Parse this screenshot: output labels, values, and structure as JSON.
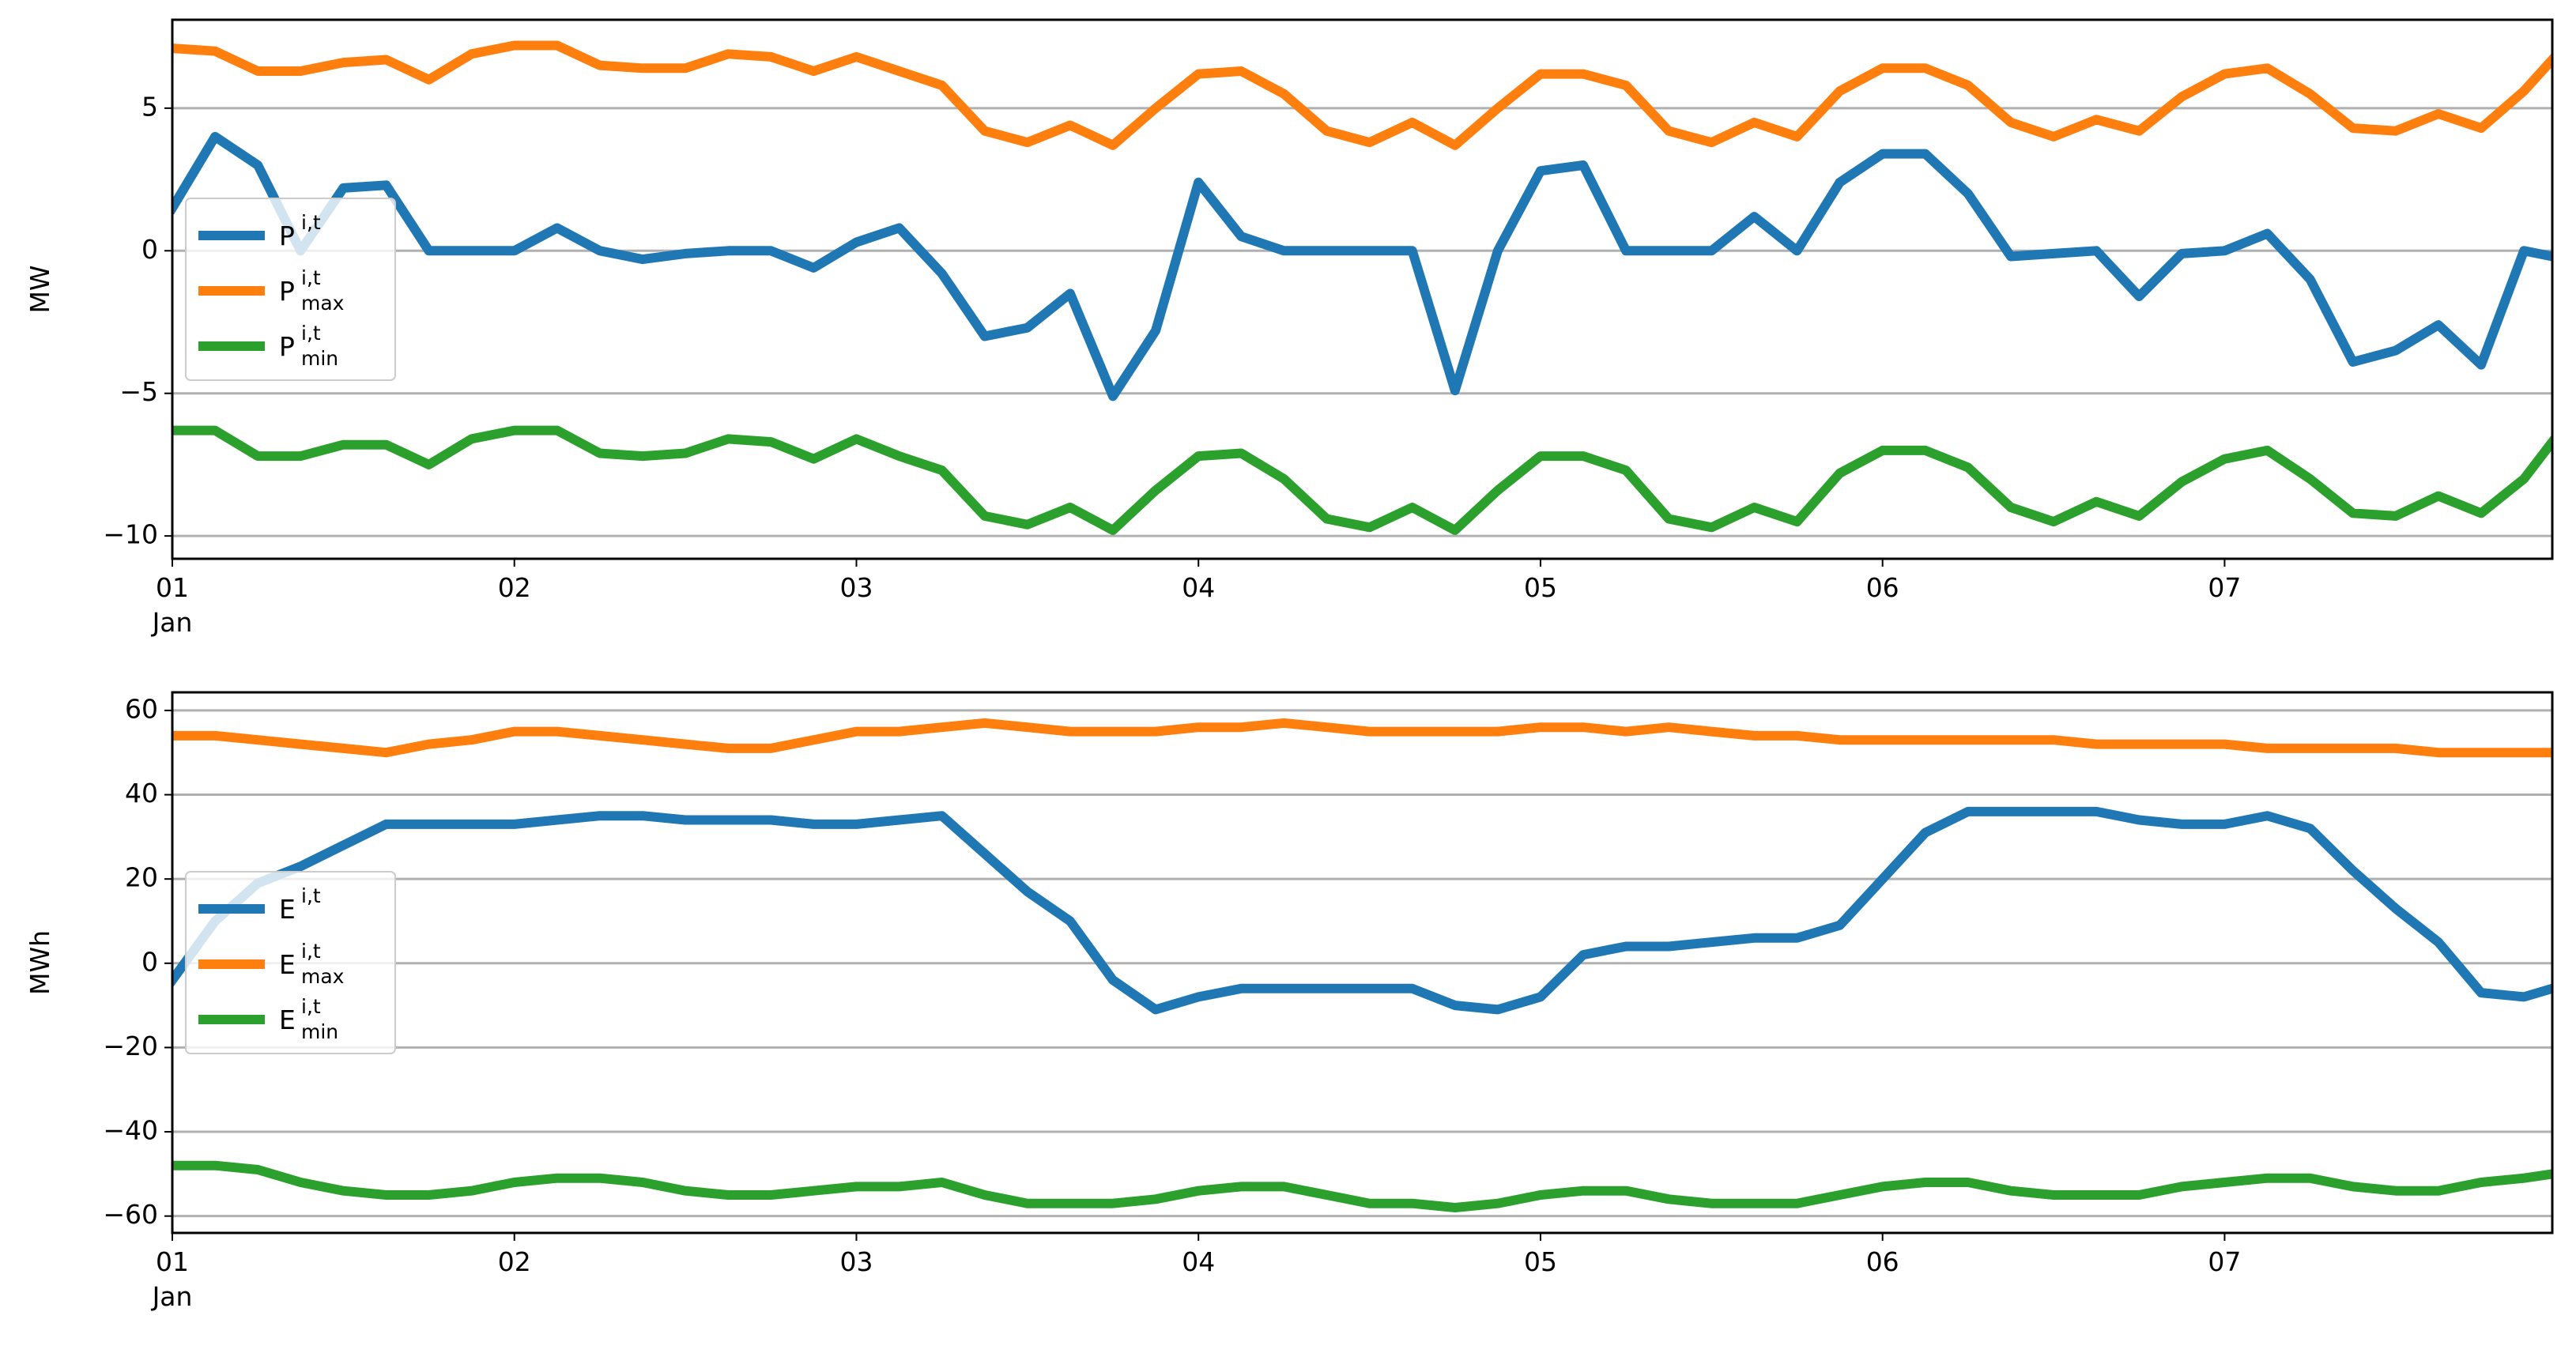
{
  "chart_data": [
    {
      "type": "line",
      "ylabel": "MW",
      "x_tick_sublabel": "Jan",
      "x": [
        1,
        1.125,
        1.25,
        1.375,
        1.5,
        1.625,
        1.75,
        1.875,
        2,
        2.125,
        2.25,
        2.375,
        2.5,
        2.625,
        2.75,
        2.875,
        3,
        3.125,
        3.25,
        3.375,
        3.5,
        3.625,
        3.75,
        3.875,
        4,
        4.125,
        4.25,
        4.375,
        4.5,
        4.625,
        4.75,
        4.875,
        5,
        5.125,
        5.25,
        5.375,
        5.5,
        5.625,
        5.75,
        5.875,
        6,
        6.125,
        6.25,
        6.375,
        6.5,
        6.625,
        6.75,
        6.875,
        7,
        7.125,
        7.25,
        7.375,
        7.5,
        7.625,
        7.75,
        7.875,
        7.958
      ],
      "xlim": [
        1,
        7.958
      ],
      "xticks": [
        {
          "value": 1,
          "label": "01"
        },
        {
          "value": 2,
          "label": "02"
        },
        {
          "value": 3,
          "label": "03"
        },
        {
          "value": 4,
          "label": "04"
        },
        {
          "value": 5,
          "label": "05"
        },
        {
          "value": 6,
          "label": "06"
        },
        {
          "value": 7,
          "label": "07"
        }
      ],
      "ylim": [
        -10.8,
        8.1
      ],
      "yticks": [
        {
          "value": -10,
          "label": "−10"
        },
        {
          "value": -5,
          "label": "−5"
        },
        0,
        5
      ],
      "grid": true,
      "legend": "center left",
      "series": [
        {
          "name": "P",
          "sup": "i,t",
          "color": "#1f77b4",
          "values": [
            1.5,
            4.0,
            3.0,
            0.0,
            2.2,
            2.3,
            0,
            0,
            0,
            0.8,
            0,
            -0.3,
            -0.1,
            0,
            0,
            -0.6,
            0.3,
            0.8,
            -0.8,
            -3.0,
            -2.7,
            -1.5,
            -5.1,
            -2.8,
            2.4,
            0.5,
            0,
            0,
            0,
            0,
            -4.9,
            0,
            2.8,
            3.0,
            0,
            0,
            0,
            1.2,
            0,
            2.4,
            3.4,
            3.4,
            2.0,
            -0.2,
            -0.1,
            0,
            -1.6,
            -0.1,
            0,
            0.6,
            -1.0,
            -3.9,
            -3.5,
            -2.6,
            -4.0,
            0,
            -0.2
          ]
        },
        {
          "name": "P",
          "sup": "i,t",
          "sub": "max",
          "color": "#ff7f0e",
          "values": [
            7.1,
            7.0,
            6.3,
            6.3,
            6.6,
            6.7,
            6.0,
            6.9,
            7.2,
            7.2,
            6.5,
            6.4,
            6.4,
            6.9,
            6.8,
            6.3,
            6.8,
            6.3,
            5.8,
            4.2,
            3.8,
            4.4,
            3.7,
            5.0,
            6.2,
            6.3,
            5.5,
            4.2,
            3.8,
            4.5,
            3.7,
            5.0,
            6.2,
            6.2,
            5.8,
            4.2,
            3.8,
            4.5,
            4.0,
            5.6,
            6.4,
            6.4,
            5.8,
            4.5,
            4.0,
            4.6,
            4.2,
            5.4,
            6.2,
            6.4,
            5.5,
            4.3,
            4.2,
            4.8,
            4.3,
            5.6,
            6.7
          ]
        },
        {
          "name": "P",
          "sup": "i,t",
          "sub": "min",
          "color": "#2ca02c",
          "values": [
            -6.3,
            -6.3,
            -7.2,
            -7.2,
            -6.8,
            -6.8,
            -7.5,
            -6.6,
            -6.3,
            -6.3,
            -7.1,
            -7.2,
            -7.1,
            -6.6,
            -6.7,
            -7.3,
            -6.6,
            -7.2,
            -7.7,
            -9.3,
            -9.6,
            -9.0,
            -9.8,
            -8.4,
            -7.2,
            -7.1,
            -8.0,
            -9.4,
            -9.7,
            -9.0,
            -9.8,
            -8.4,
            -7.2,
            -7.2,
            -7.7,
            -9.4,
            -9.7,
            -9.0,
            -9.5,
            -7.8,
            -7.0,
            -7.0,
            -7.6,
            -9.0,
            -9.5,
            -8.8,
            -9.3,
            -8.1,
            -7.3,
            -7.0,
            -8.0,
            -9.2,
            -9.3,
            -8.6,
            -9.2,
            -8.0,
            -6.7
          ]
        }
      ]
    },
    {
      "type": "line",
      "ylabel": "MWh",
      "x_tick_sublabel": "Jan",
      "x": [
        1,
        1.125,
        1.25,
        1.375,
        1.5,
        1.625,
        1.75,
        1.875,
        2,
        2.125,
        2.25,
        2.375,
        2.5,
        2.625,
        2.75,
        2.875,
        3,
        3.125,
        3.25,
        3.375,
        3.5,
        3.625,
        3.75,
        3.875,
        4,
        4.125,
        4.25,
        4.375,
        4.5,
        4.625,
        4.75,
        4.875,
        5,
        5.125,
        5.25,
        5.375,
        5.5,
        5.625,
        5.75,
        5.875,
        6,
        6.125,
        6.25,
        6.375,
        6.5,
        6.625,
        6.75,
        6.875,
        7,
        7.125,
        7.25,
        7.375,
        7.5,
        7.625,
        7.75,
        7.875,
        7.958
      ],
      "xlim": [
        1,
        7.958
      ],
      "xticks": [
        {
          "value": 1,
          "label": "01"
        },
        {
          "value": 2,
          "label": "02"
        },
        {
          "value": 3,
          "label": "03"
        },
        {
          "value": 4,
          "label": "04"
        },
        {
          "value": 5,
          "label": "05"
        },
        {
          "value": 6,
          "label": "06"
        },
        {
          "value": 7,
          "label": "07"
        }
      ],
      "ylim": [
        -64,
        64.3
      ],
      "yticks": [
        {
          "value": -60,
          "label": "−60"
        },
        {
          "value": -40,
          "label": "−40"
        },
        {
          "value": -20,
          "label": "−20"
        },
        0,
        20,
        40,
        60
      ],
      "grid": true,
      "legend": "center left",
      "series": [
        {
          "name": "E",
          "sup": "i,t",
          "color": "#1f77b4",
          "values": [
            -4,
            10,
            19,
            23,
            28,
            33,
            33,
            33,
            33,
            34,
            35,
            35,
            34,
            34,
            34,
            33,
            33,
            34,
            35,
            26,
            17,
            10,
            -4,
            -11,
            -8,
            -6,
            -6,
            -6,
            -6,
            -6,
            -10,
            -11,
            -8,
            2,
            4,
            4,
            5,
            6,
            6,
            9,
            20,
            31,
            36,
            36,
            36,
            36,
            34,
            33,
            33,
            35,
            32,
            22,
            13,
            5,
            -7,
            -8,
            -6
          ]
        },
        {
          "name": "E",
          "sup": "i,t",
          "sub": "max",
          "color": "#ff7f0e",
          "values": [
            54,
            54,
            53,
            52,
            51,
            50,
            52,
            53,
            55,
            55,
            54,
            53,
            52,
            51,
            51,
            53,
            55,
            55,
            56,
            57,
            56,
            55,
            55,
            55,
            56,
            56,
            57,
            56,
            55,
            55,
            55,
            55,
            56,
            56,
            55,
            56,
            55,
            54,
            54,
            53,
            53,
            53,
            53,
            53,
            53,
            52,
            52,
            52,
            52,
            51,
            51,
            51,
            51,
            50,
            50,
            50,
            50
          ]
        },
        {
          "name": "E",
          "sup": "i,t",
          "sub": "min",
          "color": "#2ca02c",
          "values": [
            -48,
            -48,
            -49,
            -52,
            -54,
            -55,
            -55,
            -54,
            -52,
            -51,
            -51,
            -52,
            -54,
            -55,
            -55,
            -54,
            -53,
            -53,
            -52,
            -55,
            -57,
            -57,
            -57,
            -56,
            -54,
            -53,
            -53,
            -55,
            -57,
            -57,
            -58,
            -57,
            -55,
            -54,
            -54,
            -56,
            -57,
            -57,
            -57,
            -55,
            -53,
            -52,
            -52,
            -54,
            -55,
            -55,
            -55,
            -53,
            -52,
            -51,
            -51,
            -53,
            -54,
            -54,
            -52,
            -51,
            -50
          ]
        }
      ]
    }
  ]
}
